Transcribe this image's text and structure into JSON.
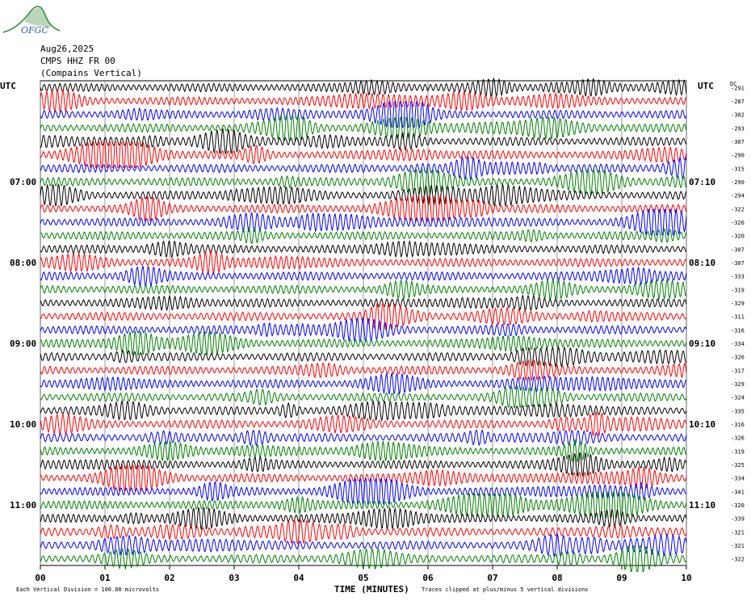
{
  "header": {
    "logo_text": "OFGC",
    "date": "Aug26,2025",
    "station": "CMPS HHZ FR 00",
    "location": "(Compains Vertical)"
  },
  "left_axis": {
    "label": "UTC"
  },
  "right_axis": {
    "label": "UTC",
    "dc_label": "DC"
  },
  "footer": {
    "note_left": "Each Vertical Division =  100.00 microvolts",
    "xlabel": "TIME (MINUTES)",
    "note_right": "Traces clipped at plus/minus 5 vertical divisions"
  },
  "colors": {
    "cycle": [
      "#000000",
      "#ff0000",
      "#0000ff",
      "#008000"
    ],
    "logo": "#3a8a3a",
    "grid": "#808080"
  },
  "chart_data": {
    "type": "line",
    "title": "CMPS HHZ FR 00",
    "xlabel": "TIME (MINUTES)",
    "xlim": [
      0,
      10
    ],
    "x_ticks": [
      "00",
      "01",
      "02",
      "03",
      "04",
      "05",
      "06",
      "07",
      "08",
      "09",
      "10"
    ],
    "trace_count": 36,
    "hour_labels_left": [
      {
        "trace": 7,
        "label": "07:00"
      },
      {
        "trace": 13,
        "label": "08:00"
      },
      {
        "trace": 19,
        "label": "09:00"
      },
      {
        "trace": 25,
        "label": "10:00"
      },
      {
        "trace": 31,
        "label": "11:00"
      }
    ],
    "hour_labels_right": [
      {
        "trace": 7,
        "label": "07:10"
      },
      {
        "trace": 13,
        "label": "08:10"
      },
      {
        "trace": 19,
        "label": "09:10"
      },
      {
        "trace": 25,
        "label": "10:10"
      },
      {
        "trace": 31,
        "label": "11:10"
      }
    ],
    "dc_offsets": [
      -291,
      -287,
      -302,
      -293,
      -307,
      -290,
      -315,
      -290,
      -294,
      -322,
      -326,
      -320,
      -307,
      -307,
      -333,
      -319,
      -329,
      -311,
      -316,
      -334,
      -326,
      -317,
      -329,
      -324,
      -335,
      -316,
      -326,
      -319,
      -325,
      -334,
      -341,
      -320,
      -339,
      -321,
      -321,
      -322
    ]
  }
}
